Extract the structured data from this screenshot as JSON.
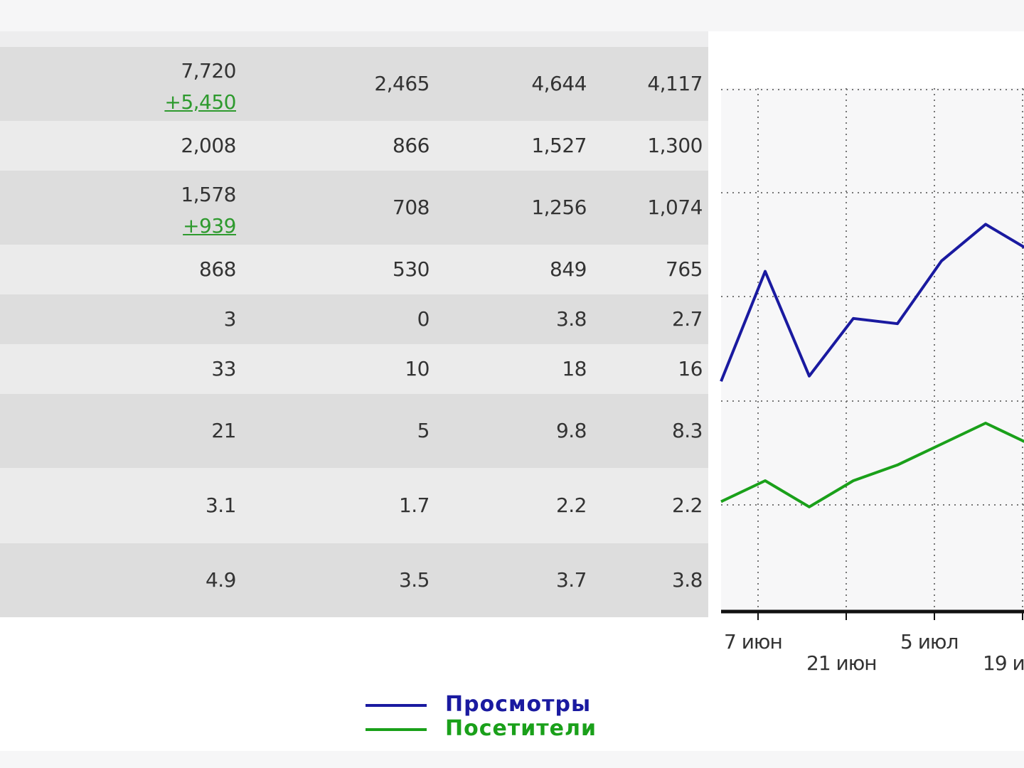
{
  "table": {
    "rows": [
      {
        "c1": "7,720",
        "c1_delta": "+5,450",
        "c2": "2,465",
        "c3": "4,644",
        "c4": "4,117"
      },
      {
        "c1": "2,008",
        "c1_delta": "",
        "c2": "866",
        "c3": "1,527",
        "c4": "1,300"
      },
      {
        "c1": "1,578",
        "c1_delta": "+939",
        "c2": "708",
        "c3": "1,256",
        "c4": "1,074"
      },
      {
        "c1": "868",
        "c1_delta": "",
        "c2": "530",
        "c3": "849",
        "c4": "765"
      },
      {
        "c1": "3",
        "c1_delta": "",
        "c2": "0",
        "c3": "3.8",
        "c4": "2.7"
      },
      {
        "c1": "33",
        "c1_delta": "",
        "c2": "10",
        "c3": "18",
        "c4": "16"
      },
      {
        "c1": "21",
        "c1_delta": "",
        "c2": "5",
        "c3": "9.8",
        "c4": "8.3"
      },
      {
        "c1": "3.1",
        "c1_delta": "",
        "c2": "1.7",
        "c3": "2.2",
        "c4": "2.2"
      },
      {
        "c1": "4.9",
        "c1_delta": "",
        "c2": "3.5",
        "c3": "3.7",
        "c4": "3.8"
      }
    ]
  },
  "chart_data": {
    "type": "line",
    "x": [
      "",
      "7 июн",
      "",
      "21 июн",
      "",
      "5 июл",
      "",
      "19 и"
    ],
    "x_tick_labels": [
      "7 июн",
      "21 июн",
      "5 июл",
      "19 и"
    ],
    "series": [
      {
        "name": "Просмотры",
        "color": "#1a1aa0",
        "values": [
          1.7,
          2.75,
          1.75,
          2.3,
          2.25,
          2.85,
          3.2,
          2.95
        ]
      },
      {
        "name": "Посетители",
        "color": "#1aa01a",
        "values": [
          0.55,
          0.75,
          0.5,
          0.75,
          0.9,
          1.1,
          1.3,
          1.1
        ]
      }
    ],
    "ylim": [
      -0.5,
      4.5
    ],
    "grid": true,
    "legend": "bottom"
  },
  "colors": {
    "delta": "#2e9a2e",
    "row_dark": "#dddddd",
    "row_light": "#ebebeb"
  }
}
